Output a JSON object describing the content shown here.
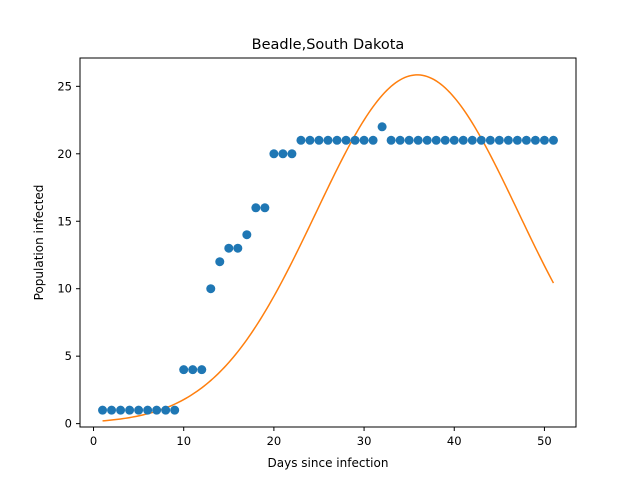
{
  "chart_data": {
    "type": "scatter",
    "title": "Beadle,South Dakota",
    "xlabel": "Days since infection",
    "ylabel": "Population infected",
    "xlim": [
      -1.5,
      53.5
    ],
    "ylim": [
      -0.25,
      27.1
    ],
    "xticks": [
      0,
      10,
      20,
      30,
      40,
      50
    ],
    "yticks": [
      0,
      5,
      10,
      15,
      20,
      25
    ],
    "grid": false,
    "series": [
      {
        "type": "scatter",
        "color": "#1f77b4",
        "x": [
          1,
          2,
          3,
          4,
          5,
          6,
          7,
          8,
          9,
          10,
          11,
          12,
          13,
          14,
          15,
          16,
          17,
          18,
          19,
          20,
          21,
          22,
          23,
          24,
          25,
          26,
          27,
          28,
          29,
          30,
          31,
          32,
          33,
          34,
          35,
          36,
          37,
          38,
          39,
          40,
          41,
          42,
          43,
          44,
          45,
          46,
          47,
          48,
          49,
          50,
          51
        ],
        "y": [
          1,
          1,
          1,
          1,
          1,
          1,
          1,
          1,
          1,
          4,
          4,
          4,
          10,
          12,
          13,
          13,
          14,
          16,
          16,
          20,
          20,
          20,
          21,
          21,
          21,
          21,
          21,
          21,
          21,
          21,
          21,
          22,
          21,
          21,
          21,
          21,
          21,
          21,
          21,
          21,
          21,
          21,
          21,
          21,
          21,
          21,
          21,
          21,
          21,
          21,
          21
        ]
      },
      {
        "type": "line",
        "color": "#ff7f0e",
        "model": "gaussian",
        "amplitude": 25.85,
        "center": 35.9,
        "sigma": 11.2,
        "x_range": [
          1,
          51
        ]
      }
    ]
  }
}
